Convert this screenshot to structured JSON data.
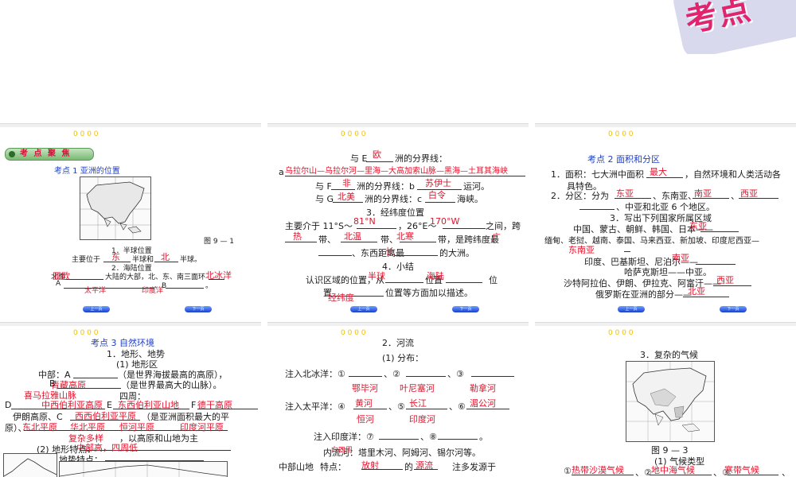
{
  "banner": {
    "text": "考点"
  },
  "colors": {
    "answer": "#e0142c",
    "heading": "#1f3fbf",
    "badge": "#79b873"
  },
  "slides": {
    "s1": {
      "hdr": "0 0 0 0",
      "badge": "考 点 聚 焦",
      "heading": "考点 1    亚洲的位置",
      "fig_label": "图 9 — 1",
      "l1": "1．半球位置",
      "l2a": "主要位于",
      "l2b": "半球和",
      "l2c": "半球。",
      "a_dong": "东",
      "a_bei": "北",
      "l3": "2．海陆位置",
      "l4a": "北面",
      "l4b": "大陆的大部，北、东、南三面环",
      "a_beibing": "北冰洋",
      "l5a": "A",
      "l5b": "、B",
      "l5c": "。",
      "a_ouya": "亚欧",
      "a_taipingyang": "太平洋",
      "a_yinduyang": "印度洋",
      "b_prev": "上一页",
      "b_next": "下一页"
    },
    "s2": {
      "hdr": "0 0 0 0",
      "l1a": "与 E",
      "l1b": "洲的分界线：",
      "a_ou": "欧",
      "l2": "a",
      "a_line": "乌拉尔山—乌拉尔河—里海—大高加索山脉—黑海—土耳其海峡",
      "l3a": "与 F",
      "l3b": "洲的分界线：b",
      "l3c": "运河。",
      "a_fei": "非",
      "a_suyishi": "苏伊士",
      "l4a": "与 G",
      "l4b": "洲的分界线：c",
      "l4c": "海峡。",
      "a_beimei": "北美",
      "a_bailing": "白令",
      "l5": "3．经纬度位置",
      "l6a": "主要介于 11°S～",
      "l6b": "，26°E～",
      "l6c": "之间，跨",
      "a_81n": "81°N",
      "a_170w": "170°W",
      "l7a": "带、",
      "l7b": "带、",
      "l7c": "带，是跨纬度最",
      "a_re": "热",
      "a_beiwen": "北温",
      "a_beihan": "北寒",
      "l8": "、东西距离最",
      "l8b": "的大洲。",
      "a_guang": "广",
      "a_chang": "长",
      "l9": "4．小结",
      "l10a": "认识区域的位置，从",
      "l10b": "位置",
      "l10c": "位",
      "a_bandao": "半球",
      "a_hailu": "海陆",
      "l11a": "置",
      "l11b": "位置等方面加以描述。",
      "a_jingwei": "经纬度",
      "b_prev": "上一页",
      "b_next": "下一页"
    },
    "s3": {
      "hdr": "0 0 0 0",
      "heading": "考点 2    面积和分区",
      "l1a": "1．面积：七大洲中面积",
      "l1b": "，自然环境和人类活动各",
      "a_zuida": "最大",
      "l2": "具特色。",
      "l3a": "2．分区：分为",
      "l3b": "、东南亚、",
      "l3c": "、",
      "a_dongya": "东亚",
      "a_nanya": "南亚",
      "a_xiya": "西亚",
      "l4": "、中亚和北亚 6 个地区。",
      "l5": "3．写出下列国家所属区域",
      "l6a": "中国、蒙古、朝鲜、韩国、日本——",
      "a_dongya2": "东亚",
      "l7a": "缅甸、老挝、越南、泰国、马来西亚、新加坡、印度尼西亚—",
      "a_dongnanya": "东南亚",
      "l8a": "印度、巴基斯坦、尼泊尔——",
      "a_nanya2": "南亚",
      "l9a": "哈萨克斯坦——中亚。",
      "l10a": "沙特阿拉伯、伊朗、伊拉克、阿富汗——",
      "a_xiya2": "西亚",
      "l11a": "俄罗斯在亚洲的部分——",
      "a_beiya": "北亚",
      "b_prev": "上一页",
      "b_next": "下一页"
    },
    "s4": {
      "hdr": "0 0 0 0",
      "heading": "考点 3    自然环境",
      "l1": "1．地形、地势",
      "l2": "(1) 地形区",
      "l3a": "中部：A",
      "l3b": "（是世界海拔最高的高原），",
      "a_qingzang": "青藏高原",
      "l4a": "B",
      "l4b": "（是世界最高大的山脉）。",
      "a_ximalaya": "喜马拉雅山脉",
      "l5": "四周：",
      "l6a": "D",
      "l6b": "E",
      "l6c": "F",
      "a_zhongxibo": "中西伯利亚高原",
      "a_dongxibo": "东西伯利亚山地",
      "a_deccan": "德干高原",
      "l7a": "伊朗高原、C",
      "l7b": "（是亚洲面积最大的平",
      "a_xixibo": "西西伯利亚平原",
      "l8a": "原）、",
      "a_huabei": "华北平原",
      "a_henghe": "恒河平原",
      "a_yindu": "印度河平原",
      "a_dongbei": "东北平原",
      "l9a": "(2) 地形特点：",
      "a_fuza": "复杂多样",
      "l9b": "，以高原和山地为主",
      "l10a": "地势特点：",
      "a_zhonggao": "中部高，四周低",
      "b_prev": "上一页",
      "b_next": "下一页"
    },
    "s5": {
      "hdr": "0 0 0 0",
      "l1": "2．河流",
      "l2": "(1) 分布：",
      "l3a": "注入北冰洋：①",
      "l3b": "、②",
      "l3c": "、③",
      "a_ebi": "鄂毕河",
      "a_yenisai": "叶尼塞河",
      "a_lena": "勒拿河",
      "l4a": "注入太平洋：④",
      "l4b": "、⑤",
      "l4c": "、⑥",
      "a_huanghe": "黄河",
      "a_changjiang": "长江",
      "a_meigong": "湄公河",
      "a_henghe": "恒河",
      "a_yinduhe": "印度河",
      "l5a": "注入印度洋：⑦",
      "l5b": "、⑧",
      "l5c": "。",
      "l6": "内流河：塔里木河、阿姆河、锡尔河等。",
      "l7a": "中部山地",
      "a_shouxiong": "向四周",
      "l7b": "特点：",
      "a_fangshe": "放射",
      "l7c": "的",
      "a_yuanliu": "源流",
      "l7d": "注多发源于",
      "b_prev": "上一页",
      "b_next": "下一页"
    },
    "s6": {
      "hdr": "0 0 0 0",
      "l1": "3．复杂的气候",
      "fig_label": "图 9 — 3",
      "l2": "(1) 气候类型",
      "a_redai": "热带沙漠气候",
      "a_dizhonghai": "地中海气候",
      "a_handai": "寒带气候",
      "l3a": "①",
      "l3b": "、②",
      "l3c": "、③",
      "l3d": "、"
    }
  }
}
